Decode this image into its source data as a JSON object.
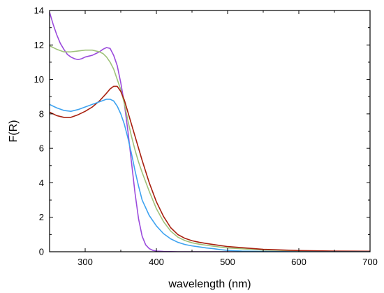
{
  "chart_data": {
    "type": "line",
    "title": "",
    "xlabel": "wavelength (nm)",
    "ylabel": "F(R)",
    "xlim": [
      250,
      700
    ],
    "ylim": [
      0,
      14
    ],
    "xticks": [
      300,
      400,
      500,
      600,
      700
    ],
    "yticks": [
      0,
      2,
      4,
      6,
      8,
      10,
      12,
      14
    ],
    "grid": false,
    "legend": "none",
    "series": [
      {
        "color": "#9b4bdc",
        "x": [
          250,
          255,
          260,
          265,
          270,
          275,
          280,
          285,
          290,
          295,
          300,
          305,
          310,
          315,
          320,
          325,
          330,
          335,
          340,
          345,
          350,
          355,
          360,
          365,
          370,
          375,
          380,
          385,
          390,
          395,
          400,
          410,
          420,
          430,
          450,
          500,
          600,
          700
        ],
        "y": [
          13.9,
          13.2,
          12.6,
          12.1,
          11.75,
          11.45,
          11.3,
          11.2,
          11.15,
          11.2,
          11.3,
          11.35,
          11.4,
          11.5,
          11.6,
          11.75,
          11.85,
          11.8,
          11.4,
          10.8,
          9.8,
          8.6,
          7.0,
          5.2,
          3.4,
          1.9,
          0.9,
          0.4,
          0.18,
          0.08,
          0.04,
          0.02,
          0.01,
          0.0,
          0.0,
          0.0,
          0.0,
          0.0
        ]
      },
      {
        "color": "#9fc27a",
        "x": [
          250,
          260,
          270,
          280,
          290,
          300,
          310,
          320,
          325,
          330,
          335,
          340,
          345,
          350,
          355,
          360,
          365,
          370,
          375,
          380,
          390,
          400,
          410,
          420,
          430,
          440,
          450,
          460,
          470,
          480,
          500,
          550,
          600,
          650,
          700
        ],
        "y": [
          11.95,
          11.75,
          11.6,
          11.6,
          11.65,
          11.7,
          11.7,
          11.6,
          11.5,
          11.3,
          11.0,
          10.6,
          10.0,
          9.4,
          8.6,
          7.6,
          6.7,
          5.9,
          5.2,
          4.6,
          3.5,
          2.5,
          1.75,
          1.2,
          0.85,
          0.65,
          0.52,
          0.44,
          0.38,
          0.32,
          0.22,
          0.1,
          0.05,
          0.03,
          0.02
        ]
      },
      {
        "color": "#a8200f",
        "x": [
          250,
          260,
          270,
          280,
          290,
          300,
          310,
          320,
          330,
          335,
          340,
          345,
          350,
          355,
          360,
          365,
          370,
          375,
          380,
          390,
          400,
          410,
          420,
          430,
          440,
          450,
          460,
          470,
          480,
          500,
          550,
          600,
          650,
          700
        ],
        "y": [
          8.1,
          7.9,
          7.8,
          7.8,
          7.95,
          8.15,
          8.4,
          8.75,
          9.2,
          9.45,
          9.6,
          9.6,
          9.3,
          8.8,
          8.1,
          7.4,
          6.7,
          6.0,
          5.3,
          4.0,
          2.9,
          2.05,
          1.4,
          1.0,
          0.78,
          0.64,
          0.55,
          0.48,
          0.42,
          0.3,
          0.14,
          0.07,
          0.04,
          0.03
        ]
      },
      {
        "color": "#3fa3f0",
        "x": [
          250,
          260,
          270,
          280,
          290,
          300,
          310,
          320,
          330,
          335,
          340,
          345,
          350,
          355,
          360,
          365,
          370,
          375,
          380,
          390,
          400,
          410,
          420,
          430,
          440,
          450,
          460,
          470,
          480,
          490,
          500,
          520,
          550,
          600,
          700
        ],
        "y": [
          8.55,
          8.35,
          8.2,
          8.15,
          8.25,
          8.4,
          8.55,
          8.7,
          8.85,
          8.85,
          8.75,
          8.45,
          8.0,
          7.4,
          6.6,
          5.7,
          4.7,
          3.8,
          3.0,
          2.1,
          1.5,
          1.05,
          0.75,
          0.55,
          0.42,
          0.34,
          0.28,
          0.22,
          0.18,
          0.12,
          0.08,
          0.04,
          0.02,
          0.0,
          0.0
        ]
      }
    ]
  }
}
